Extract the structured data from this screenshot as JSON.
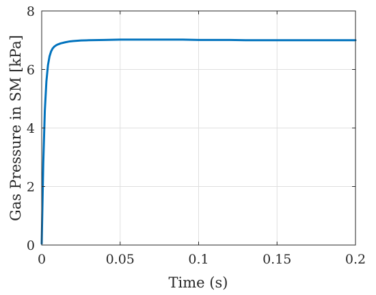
{
  "chart_data": {
    "type": "line",
    "title": "",
    "xlabel": "Time (s)",
    "ylabel": "Gas Pressure in SM [kPa]",
    "xlim": [
      0,
      0.2
    ],
    "ylim": [
      0,
      8
    ],
    "grid": true,
    "x_ticks": [
      0,
      0.05,
      0.1,
      0.15,
      0.2
    ],
    "x_tick_labels": [
      "0",
      "0.05",
      "0.1",
      "0.15",
      "0.2"
    ],
    "y_ticks": [
      0,
      2,
      4,
      6,
      8
    ],
    "y_tick_labels": [
      "0",
      "2",
      "4",
      "6",
      "8"
    ],
    "series": [
      {
        "color": "#0072BD",
        "x": [
          0,
          0.001,
          0.002,
          0.003,
          0.004,
          0.005,
          0.006,
          0.007,
          0.008,
          0.009,
          0.01,
          0.012,
          0.015,
          0.018,
          0.02,
          0.025,
          0.03,
          0.04,
          0.05,
          0.06,
          0.07,
          0.08,
          0.09,
          0.1,
          0.11,
          0.12,
          0.13,
          0.14,
          0.15,
          0.16,
          0.17,
          0.18,
          0.19,
          0.2
        ],
        "y": [
          0.05,
          2.8,
          4.6,
          5.6,
          6.15,
          6.45,
          6.62,
          6.72,
          6.78,
          6.82,
          6.85,
          6.89,
          6.93,
          6.96,
          6.97,
          6.99,
          7.0,
          7.01,
          7.02,
          7.02,
          7.02,
          7.02,
          7.02,
          7.01,
          7.01,
          7.01,
          7.0,
          7.0,
          7.0,
          7.0,
          7.0,
          7.0,
          7.0,
          7.0
        ]
      }
    ]
  }
}
